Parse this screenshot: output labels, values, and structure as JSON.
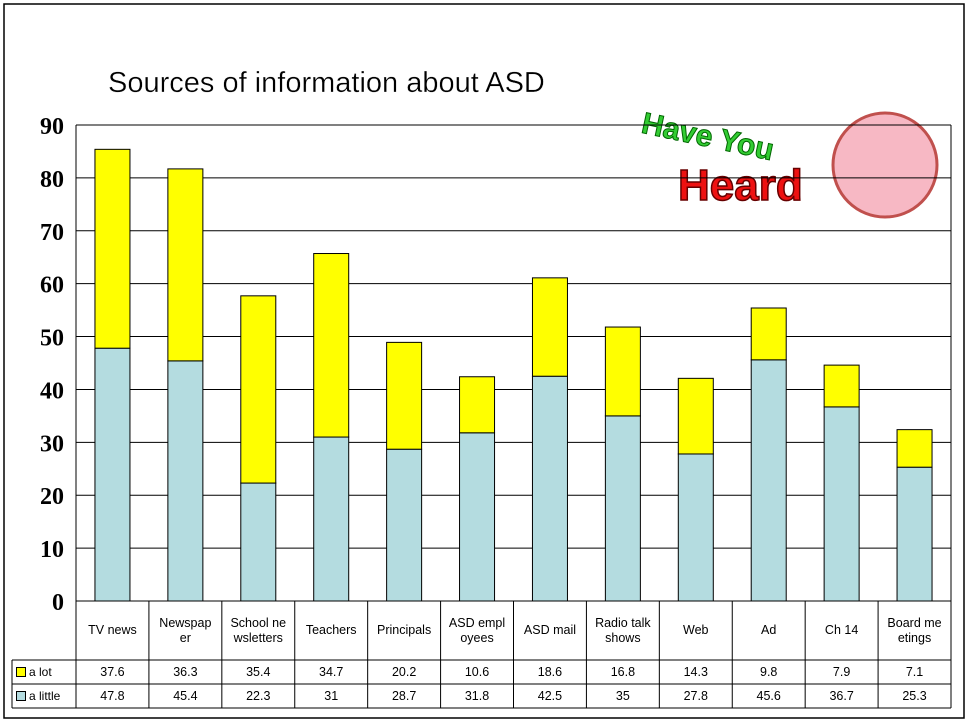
{
  "chart_data": {
    "type": "stacked-bar",
    "title": "Sources of information about ASD",
    "categories": [
      "TV news",
      "Newspaper",
      "School newsletters",
      "Teachers",
      "Principals",
      "ASD employees",
      "ASD mail",
      "Radio talk shows",
      "Web",
      "Ad",
      "Ch 14",
      "Board meetings"
    ],
    "series": [
      {
        "name": "a lot",
        "color": "#ffff00",
        "values": [
          37.6,
          36.3,
          35.4,
          34.7,
          20.2,
          10.6,
          18.6,
          16.8,
          14.3,
          9.8,
          7.9,
          7.1
        ]
      },
      {
        "name": "a little",
        "color": "#b4dce0",
        "values": [
          47.8,
          45.4,
          22.3,
          31,
          28.7,
          31.8,
          42.5,
          35,
          27.8,
          45.6,
          36.7,
          25.3
        ]
      }
    ],
    "ylim": [
      0,
      90
    ],
    "yticks": [
      0,
      10,
      20,
      30,
      40,
      50,
      60,
      70,
      80,
      90
    ],
    "grid": true
  },
  "logo": {
    "top": "Have You",
    "bottom": "Heard"
  }
}
